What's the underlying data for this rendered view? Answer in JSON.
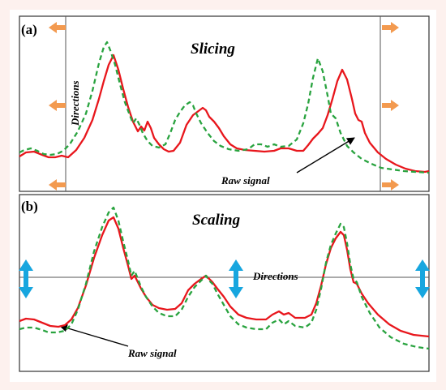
{
  "colors": {
    "background": "#fdf1ee",
    "raw_signal": "#e8161c",
    "processed_signal": "#29a33f",
    "slicing_arrows": "#f39a4f",
    "scaling_arrows": "#17a6df",
    "frame": "#333333"
  },
  "panel_a": {
    "label": "(a)",
    "title": "Slicing",
    "directions_label": "Directions",
    "raw_signal_label": "Raw signal",
    "icons": [
      "arrow-left-icon",
      "arrow-right-icon"
    ]
  },
  "panel_b": {
    "label": "(b)",
    "title": "Scaling",
    "directions_label": "Directions",
    "raw_signal_label": "Raw signal",
    "icons": [
      "double-arrow-vertical-icon"
    ]
  }
}
